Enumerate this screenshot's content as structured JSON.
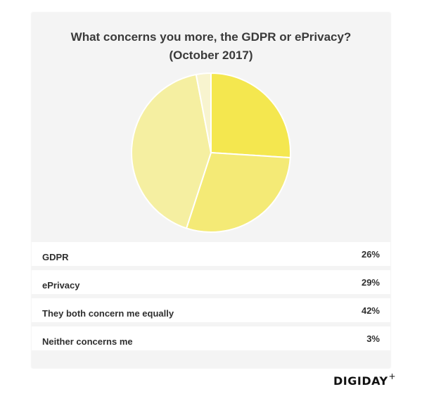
{
  "chart_data": {
    "type": "pie",
    "title": "What concerns you more, the GDPR or ePrivacy?",
    "subtitle": "(October 2017)",
    "categories": [
      "GDPR",
      "ePrivacy",
      "They both concern me equally",
      "Neither concerns me"
    ],
    "values": [
      26,
      29,
      42,
      3
    ],
    "value_labels": [
      "26%",
      "29%",
      "42%",
      "3%"
    ],
    "colors": [
      "#f4e74f",
      "#f4ea76",
      "#f5efa1",
      "#f8f4cf"
    ],
    "start_angle": "12 o'clock",
    "direction": "clockwise",
    "legend": "bottom"
  },
  "brand": {
    "logo_text": "DIGIDAY",
    "logo_suffix": "+"
  }
}
